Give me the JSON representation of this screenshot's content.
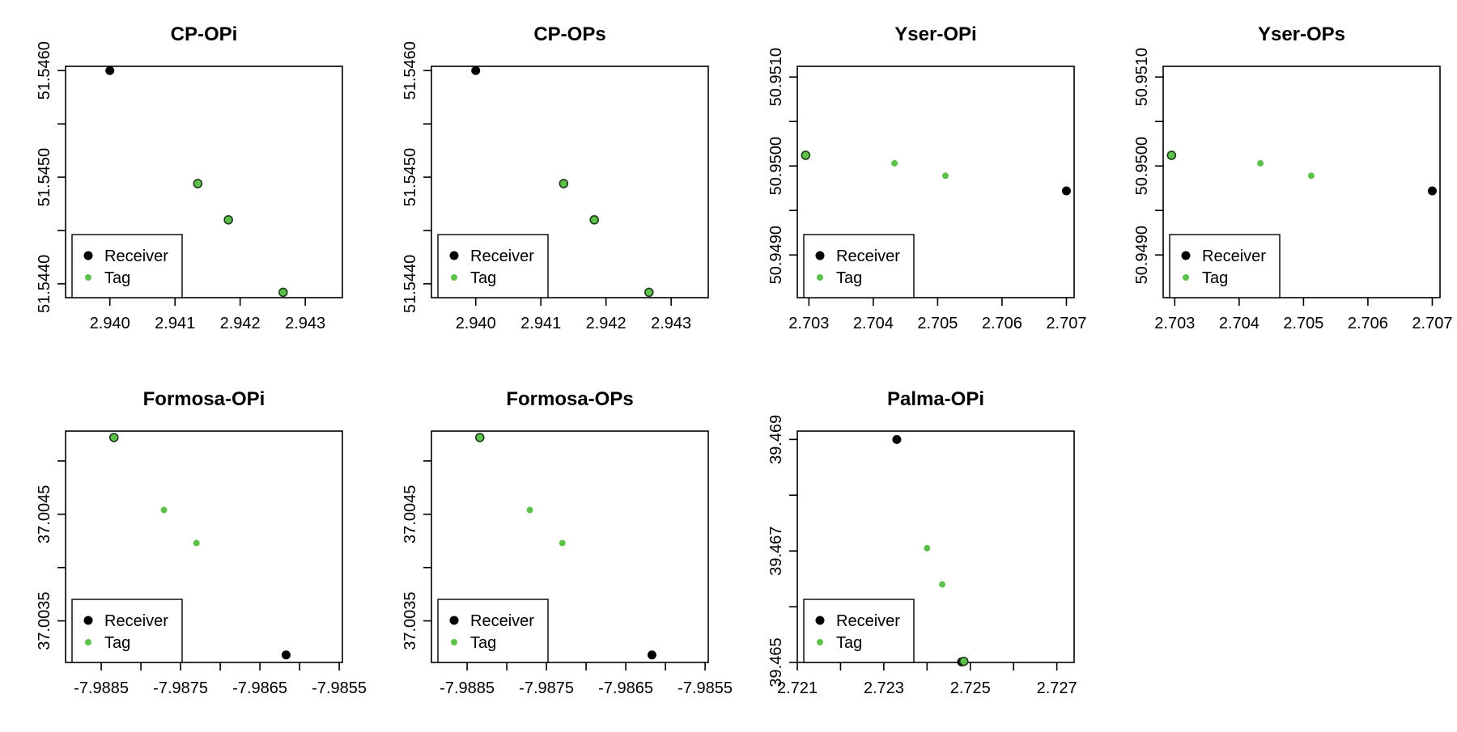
{
  "legend": {
    "receiver_label": "Receiver",
    "tag_label": "Tag",
    "placement": "bottom-left"
  },
  "colors": {
    "receiver": "#000000",
    "tag": "#5dc24b",
    "tag_with_border": "#5dc24b"
  },
  "chart_data": [
    {
      "type": "scatter",
      "title": "CP-OPi",
      "xlabel": "",
      "ylabel": "",
      "xlim": [
        2.93932,
        2.94357
      ],
      "ylim": [
        51.54387,
        51.54604
      ],
      "xticks": [
        2.94,
        2.941,
        2.942,
        2.943
      ],
      "xtick_labels": [
        "2.940",
        "2.941",
        "2.942",
        "2.943"
      ],
      "yticks": [
        51.544,
        51.5445,
        51.545,
        51.5455,
        51.546
      ],
      "ytick_labels": [
        "51.5440",
        "",
        "51.5450",
        "",
        "51.5460"
      ],
      "series": [
        {
          "name": "Receiver",
          "points": [
            {
              "x": 2.94,
              "y": 51.546
            }
          ]
        },
        {
          "name": "Tag",
          "points": [
            {
              "x": 2.94135,
              "y": 51.54494,
              "style": "outlined"
            },
            {
              "x": 2.94182,
              "y": 51.5446,
              "style": "outlined"
            },
            {
              "x": 2.94266,
              "y": 51.54392,
              "style": "outlined"
            }
          ]
        }
      ]
    },
    {
      "type": "scatter",
      "title": "CP-OPs",
      "xlabel": "",
      "ylabel": "",
      "xlim": [
        2.93932,
        2.94357
      ],
      "ylim": [
        51.54387,
        51.54604
      ],
      "xticks": [
        2.94,
        2.941,
        2.942,
        2.943
      ],
      "xtick_labels": [
        "2.940",
        "2.941",
        "2.942",
        "2.943"
      ],
      "yticks": [
        51.544,
        51.5445,
        51.545,
        51.5455,
        51.546
      ],
      "ytick_labels": [
        "51.5440",
        "",
        "51.5450",
        "",
        "51.5460"
      ],
      "series": [
        {
          "name": "Receiver",
          "points": [
            {
              "x": 2.94,
              "y": 51.546
            }
          ]
        },
        {
          "name": "Tag",
          "points": [
            {
              "x": 2.94135,
              "y": 51.54494,
              "style": "outlined"
            },
            {
              "x": 2.94182,
              "y": 51.5446,
              "style": "outlined"
            },
            {
              "x": 2.94266,
              "y": 51.54392,
              "style": "outlined"
            }
          ]
        }
      ]
    },
    {
      "type": "scatter",
      "title": "Yser-OPi",
      "xlabel": "",
      "ylabel": "",
      "xlim": [
        2.70282,
        2.70712
      ],
      "ylim": [
        50.94852,
        50.95112
      ],
      "xticks": [
        2.703,
        2.704,
        2.705,
        2.706,
        2.707
      ],
      "xtick_labels": [
        "2.703",
        "2.704",
        "2.705",
        "2.706",
        "2.707"
      ],
      "yticks": [
        50.9485,
        50.949,
        50.9495,
        50.95,
        50.9505,
        50.951
      ],
      "ytick_labels": [
        "",
        "50.9490",
        "",
        "50.9500",
        "",
        "50.9510"
      ],
      "series": [
        {
          "name": "Receiver",
          "points": [
            {
              "x": 2.707,
              "y": 50.94972
            }
          ]
        },
        {
          "name": "Tag",
          "points": [
            {
              "x": 2.70295,
              "y": 50.95012,
              "style": "outlined"
            },
            {
              "x": 2.70433,
              "y": 50.95003,
              "style": "small"
            },
            {
              "x": 2.70512,
              "y": 50.94989,
              "style": "small"
            }
          ]
        }
      ]
    },
    {
      "type": "scatter",
      "title": "Yser-OPs",
      "xlabel": "",
      "ylabel": "",
      "xlim": [
        2.70282,
        2.70712
      ],
      "ylim": [
        50.94852,
        50.95112
      ],
      "xticks": [
        2.703,
        2.704,
        2.705,
        2.706,
        2.707
      ],
      "xtick_labels": [
        "2.703",
        "2.704",
        "2.705",
        "2.706",
        "2.707"
      ],
      "yticks": [
        50.9485,
        50.949,
        50.9495,
        50.95,
        50.9505,
        50.951
      ],
      "ytick_labels": [
        "",
        "50.9490",
        "",
        "50.9500",
        "",
        "50.9510"
      ],
      "series": [
        {
          "name": "Receiver",
          "points": [
            {
              "x": 2.707,
              "y": 50.94972
            }
          ]
        },
        {
          "name": "Tag",
          "points": [
            {
              "x": 2.70295,
              "y": 50.95012,
              "style": "outlined"
            },
            {
              "x": 2.70433,
              "y": 50.95003,
              "style": "small"
            },
            {
              "x": 2.70512,
              "y": 50.94989,
              "style": "small"
            }
          ]
        }
      ]
    },
    {
      "type": "scatter",
      "title": "Formosa-OPi",
      "xlabel": "",
      "ylabel": "",
      "xlim": [
        -7.98895,
        -7.98546
      ],
      "ylim": [
        37.00311,
        37.00528
      ],
      "xticks": [
        -7.9885,
        -7.988,
        -7.9875,
        -7.987,
        -7.9865,
        -7.986,
        -7.9855
      ],
      "xtick_labels": [
        "-7.9885",
        "",
        "-7.9875",
        "",
        "-7.9865",
        "",
        "-7.9855"
      ],
      "yticks": [
        37.0035,
        37.004,
        37.0045,
        37.005
      ],
      "ytick_labels": [
        "37.0035",
        "",
        "37.0045",
        ""
      ],
      "series": [
        {
          "name": "Receiver",
          "points": [
            {
              "x": -7.98617,
              "y": 37.00318
            }
          ]
        },
        {
          "name": "Tag",
          "points": [
            {
              "x": -7.98834,
              "y": 37.00522,
              "style": "outlined"
            },
            {
              "x": -7.98771,
              "y": 37.00454,
              "style": "small"
            },
            {
              "x": -7.9873,
              "y": 37.00423,
              "style": "small"
            }
          ]
        }
      ]
    },
    {
      "type": "scatter",
      "title": "Formosa-OPs",
      "xlabel": "",
      "ylabel": "",
      "xlim": [
        -7.98895,
        -7.98546
      ],
      "ylim": [
        37.00311,
        37.00528
      ],
      "xticks": [
        -7.9885,
        -7.988,
        -7.9875,
        -7.987,
        -7.9865,
        -7.986,
        -7.9855
      ],
      "xtick_labels": [
        "-7.9885",
        "",
        "-7.9875",
        "",
        "-7.9865",
        "",
        "-7.9855"
      ],
      "yticks": [
        37.0035,
        37.004,
        37.0045,
        37.005
      ],
      "ytick_labels": [
        "37.0035",
        "",
        "37.0045",
        ""
      ],
      "series": [
        {
          "name": "Receiver",
          "points": [
            {
              "x": -7.98617,
              "y": 37.00318
            }
          ]
        },
        {
          "name": "Tag",
          "points": [
            {
              "x": -7.98834,
              "y": 37.00522,
              "style": "outlined"
            },
            {
              "x": -7.98771,
              "y": 37.00454,
              "style": "small"
            },
            {
              "x": -7.9873,
              "y": 37.00423,
              "style": "small"
            }
          ]
        }
      ]
    },
    {
      "type": "scatter",
      "title": "Palma-OPi",
      "xlabel": "",
      "ylabel": "",
      "xlim": [
        2.721,
        2.7274
      ],
      "ylim": [
        39.465,
        39.46915
      ],
      "xticks": [
        2.721,
        2.722,
        2.723,
        2.724,
        2.725,
        2.726,
        2.727
      ],
      "xtick_labels": [
        "2.721",
        "",
        "2.723",
        "",
        "2.725",
        "",
        "2.727"
      ],
      "yticks": [
        39.465,
        39.466,
        39.467,
        39.468,
        39.469
      ],
      "ytick_labels": [
        "39.465",
        "",
        "39.467",
        "",
        "39.469"
      ],
      "series": [
        {
          "name": "Receiver",
          "points": [
            {
              "x": 2.7233,
              "y": 39.469
            },
            {
              "x": 2.7248,
              "y": 39.46501
            }
          ]
        },
        {
          "name": "Tag",
          "points": [
            {
              "x": 2.724,
              "y": 39.46705,
              "style": "small"
            },
            {
              "x": 2.72435,
              "y": 39.4664,
              "style": "small"
            },
            {
              "x": 2.72485,
              "y": 39.46502,
              "style": "outlined"
            }
          ]
        }
      ]
    }
  ]
}
